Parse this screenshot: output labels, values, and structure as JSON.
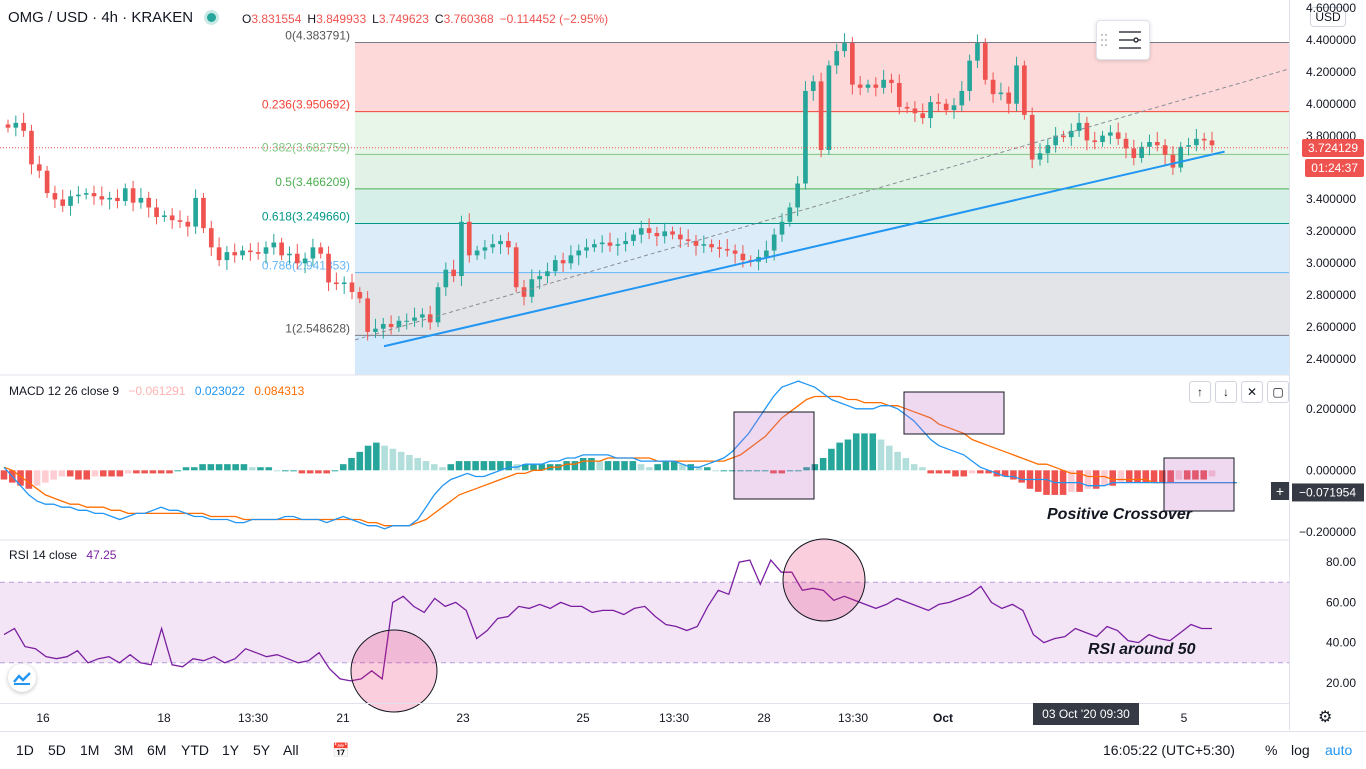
{
  "header": {
    "symbol": "OMG / USD · 4h · KRAKEN",
    "ohlc": [
      {
        "k": "O",
        "v": "3.831554"
      },
      {
        "k": "H",
        "v": "3.849933"
      },
      {
        "k": "L",
        "v": "3.749623"
      },
      {
        "k": "C",
        "v": "3.760368"
      },
      {
        "k": "",
        "v": "−0.114452 (−2.95%)"
      }
    ],
    "currency": "USD"
  },
  "colors": {
    "up": "#26a69a",
    "down": "#ef5350",
    "trend": "#2196f3",
    "macd": "#2196f3",
    "signal": "#ff6d00",
    "rsi": "#7b1fa2"
  },
  "price_axis": {
    "labels": [
      "4.600000",
      "4.400000",
      "4.200000",
      "4.000000",
      "3.800000",
      "3.600000",
      "3.400000",
      "3.200000",
      "3.000000",
      "2.800000",
      "2.600000",
      "2.400000"
    ],
    "current_price": "3.724129",
    "countdown": "01:24:37"
  },
  "macd_axis": {
    "labels": [
      "0.200000",
      "0.000000",
      "−0.200000"
    ],
    "crosshair_value": "−0.071954"
  },
  "rsi_axis": {
    "labels": [
      "80.00",
      "60.00",
      "40.00",
      "20.00"
    ]
  },
  "indicators": {
    "macd": {
      "label": "MACD",
      "params": "12 26 close 9",
      "v1": "−0.061291",
      "v2": "0.023022",
      "v3": "0.084313"
    },
    "rsi": {
      "label": "RSI",
      "params": "14 close",
      "value": "47.25"
    }
  },
  "annotations": {
    "crossover": "Positive Crossover",
    "rsi": "RSI around 50"
  },
  "time_axis": {
    "labels": [
      "16",
      "18",
      "13:30",
      "21",
      "23",
      "25",
      "13:30",
      "28",
      "13:30",
      "Oct",
      "5"
    ],
    "crosshair": "03 Oct '20  09:30"
  },
  "bottom_bar": {
    "ranges": [
      "1D",
      "5D",
      "1M",
      "3M",
      "6M",
      "YTD",
      "1Y",
      "5Y",
      "All"
    ],
    "clock": "16:05:22 (UTC+5:30)",
    "percent": "%",
    "log": "log",
    "auto": "auto"
  },
  "chart_data": [
    {
      "type": "candlestick",
      "title": "OMG / USD · 4h · KRAKEN",
      "ylim": [
        2.3,
        4.65
      ],
      "fibonacci": [
        {
          "level": "0",
          "price": 4.383791,
          "label": "0(4.383791)"
        },
        {
          "level": "0.236",
          "price": 3.950692,
          "label": "0.236(3.950692)"
        },
        {
          "level": "0.382",
          "price": 3.682759,
          "label": "0.382(3.682759)"
        },
        {
          "level": "0.5",
          "price": 3.466209,
          "label": "0.5(3.466209)"
        },
        {
          "level": "0.618",
          "price": 3.24966,
          "label": "0.618(3.249660)"
        },
        {
          "level": "0.786",
          "price": 2.941353,
          "label": "0.786(2.941353)"
        },
        {
          "level": "1",
          "price": 2.548628,
          "label": "1(2.548628)"
        }
      ],
      "close": [
        3.85,
        3.88,
        3.83,
        3.62,
        3.58,
        3.44,
        3.4,
        3.36,
        3.42,
        3.43,
        3.44,
        3.42,
        3.4,
        3.41,
        3.39,
        3.47,
        3.38,
        3.41,
        3.35,
        3.29,
        3.3,
        3.27,
        3.26,
        3.23,
        3.41,
        3.22,
        3.1,
        3.02,
        3.07,
        3.05,
        3.08,
        3.07,
        3.06,
        3.1,
        3.13,
        3.05,
        3.06,
        3.0,
        3.03,
        3.1,
        3.06,
        2.88,
        2.87,
        2.88,
        2.82,
        2.78,
        2.57,
        2.59,
        2.62,
        2.6,
        2.64,
        2.64,
        2.66,
        2.68,
        2.63,
        2.85,
        2.96,
        2.92,
        3.26,
        3.05,
        3.08,
        3.1,
        3.12,
        3.14,
        3.1,
        2.85,
        2.79,
        2.9,
        2.92,
        2.95,
        3.02,
        3.0,
        3.05,
        3.08,
        3.1,
        3.12,
        3.13,
        3.11,
        3.12,
        3.14,
        3.18,
        3.22,
        3.19,
        3.17,
        3.2,
        3.18,
        3.15,
        3.14,
        3.11,
        3.12,
        3.1,
        3.09,
        3.08,
        3.06,
        3.02,
        3.01,
        3.04,
        3.08,
        3.18,
        3.26,
        3.35,
        3.5,
        4.08,
        4.14,
        3.71,
        4.24,
        4.33,
        4.38,
        4.12,
        4.1,
        4.12,
        4.1,
        4.15,
        4.13,
        3.98,
        3.97,
        3.94,
        3.91,
        4.01,
        4.0,
        3.96,
        3.99,
        4.08,
        4.27,
        4.38,
        4.15,
        4.06,
        4.07,
        4.0,
        4.24,
        3.93,
        3.65,
        3.69,
        3.74,
        3.8,
        3.79,
        3.83,
        3.88,
        3.77,
        3.76,
        3.8,
        3.82,
        3.78,
        3.72,
        3.66,
        3.73,
        3.76,
        3.74,
        3.68,
        3.6,
        3.73,
        3.74,
        3.78,
        3.77,
        3.74
      ],
      "trendline": [
        [
          0.031,
          2.48
        ],
        [
          0.93,
          3.7
        ]
      ]
    },
    {
      "type": "bar",
      "title": "MACD 12 26 close 9",
      "ylim": [
        -0.22,
        0.3
      ],
      "histogram": [
        -0.03,
        -0.04,
        -0.05,
        -0.06,
        -0.05,
        -0.04,
        -0.03,
        -0.02,
        -0.02,
        -0.03,
        -0.03,
        -0.02,
        -0.02,
        -0.02,
        -0.02,
        -0.01,
        -0.01,
        -0.01,
        -0.01,
        -0.01,
        -0.01,
        0.0,
        0.01,
        0.01,
        0.02,
        0.02,
        0.02,
        0.02,
        0.02,
        0.02,
        0.01,
        0.01,
        0.01,
        0.0,
        0.0,
        0.0,
        -0.01,
        -0.01,
        -0.01,
        -0.01,
        0.0,
        0.02,
        0.04,
        0.06,
        0.08,
        0.09,
        0.08,
        0.07,
        0.06,
        0.05,
        0.04,
        0.03,
        0.02,
        0.01,
        0.02,
        0.03,
        0.03,
        0.03,
        0.03,
        0.03,
        0.03,
        0.03,
        0.02,
        0.02,
        0.02,
        0.02,
        0.02,
        0.02,
        0.03,
        0.03,
        0.04,
        0.04,
        0.03,
        0.03,
        0.03,
        0.03,
        0.03,
        0.02,
        0.01,
        0.02,
        0.03,
        0.03,
        0.02,
        0.02,
        0.01,
        0.01,
        0.0,
        0.0,
        0.0,
        0.0,
        0.0,
        0.0,
        0.0,
        -0.01,
        -0.01,
        0.0,
        0.0,
        0.01,
        0.02,
        0.04,
        0.07,
        0.09,
        0.1,
        0.12,
        0.12,
        0.12,
        0.1,
        0.08,
        0.06,
        0.04,
        0.02,
        0.01,
        -0.01,
        -0.01,
        -0.01,
        -0.02,
        -0.02,
        -0.01,
        -0.01,
        -0.01,
        -0.02,
        -0.02,
        -0.03,
        -0.04,
        -0.06,
        -0.07,
        -0.08,
        -0.08,
        -0.08,
        -0.07,
        -0.07,
        -0.06,
        -0.06,
        -0.05,
        -0.05,
        -0.04,
        -0.04,
        -0.04,
        -0.04,
        -0.04,
        -0.04,
        -0.04,
        -0.03,
        -0.03,
        -0.03,
        -0.03,
        -0.02
      ],
      "macd": [
        0.01,
        -0.02,
        -0.05,
        -0.08,
        -0.1,
        -0.11,
        -0.11,
        -0.12,
        -0.12,
        -0.13,
        -0.13,
        -0.14,
        -0.14,
        -0.15,
        -0.16,
        -0.15,
        -0.14,
        -0.14,
        -0.13,
        -0.12,
        -0.13,
        -0.13,
        -0.14,
        -0.15,
        -0.15,
        -0.16,
        -0.16,
        -0.16,
        -0.17,
        -0.17,
        -0.16,
        -0.16,
        -0.16,
        -0.16,
        -0.15,
        -0.15,
        -0.16,
        -0.16,
        -0.16,
        -0.17,
        -0.16,
        -0.15,
        -0.16,
        -0.17,
        -0.18,
        -0.18,
        -0.19,
        -0.18,
        -0.18,
        -0.18,
        -0.16,
        -0.12,
        -0.08,
        -0.05,
        -0.03,
        -0.02,
        -0.01,
        -0.02,
        -0.02,
        -0.01,
        0.0,
        0.01,
        0.01,
        0.02,
        0.02,
        0.02,
        0.03,
        0.03,
        0.04,
        0.04,
        0.05,
        0.05,
        0.05,
        0.05,
        0.04,
        0.04,
        0.04,
        0.03,
        0.03,
        0.03,
        0.03,
        0.03,
        0.02,
        0.01,
        0.01,
        0.02,
        0.03,
        0.04,
        0.06,
        0.09,
        0.12,
        0.16,
        0.2,
        0.24,
        0.27,
        0.28,
        0.29,
        0.28,
        0.27,
        0.25,
        0.23,
        0.22,
        0.21,
        0.2,
        0.2,
        0.2,
        0.21,
        0.21,
        0.2,
        0.18,
        0.16,
        0.13,
        0.1,
        0.08,
        0.07,
        0.06,
        0.05,
        0.03,
        0.01,
        0.0,
        -0.01,
        -0.02,
        -0.02,
        -0.03,
        -0.03,
        -0.03,
        -0.03,
        -0.04,
        -0.04,
        -0.04,
        -0.04,
        -0.05,
        -0.05,
        -0.05,
        -0.04,
        -0.04,
        -0.04,
        -0.04,
        -0.04,
        -0.04,
        -0.04,
        -0.04,
        -0.04,
        -0.04,
        -0.04,
        -0.04,
        -0.04,
        -0.04,
        -0.04,
        -0.04
      ],
      "signal": [
        0.01,
        -0.0,
        -0.02,
        -0.04,
        -0.06,
        -0.08,
        -0.09,
        -0.1,
        -0.11,
        -0.11,
        -0.12,
        -0.12,
        -0.12,
        -0.13,
        -0.13,
        -0.14,
        -0.14,
        -0.14,
        -0.14,
        -0.14,
        -0.14,
        -0.14,
        -0.14,
        -0.14,
        -0.14,
        -0.15,
        -0.15,
        -0.15,
        -0.15,
        -0.16,
        -0.16,
        -0.16,
        -0.16,
        -0.16,
        -0.16,
        -0.16,
        -0.16,
        -0.16,
        -0.16,
        -0.16,
        -0.16,
        -0.16,
        -0.16,
        -0.16,
        -0.17,
        -0.17,
        -0.18,
        -0.18,
        -0.18,
        -0.18,
        -0.17,
        -0.16,
        -0.14,
        -0.12,
        -0.1,
        -0.08,
        -0.07,
        -0.06,
        -0.05,
        -0.04,
        -0.03,
        -0.02,
        -0.01,
        -0.01,
        0.0,
        0.0,
        0.01,
        0.01,
        0.02,
        0.02,
        0.03,
        0.03,
        0.03,
        0.04,
        0.04,
        0.04,
        0.04,
        0.04,
        0.04,
        0.03,
        0.03,
        0.03,
        0.03,
        0.03,
        0.03,
        0.03,
        0.03,
        0.03,
        0.04,
        0.05,
        0.07,
        0.09,
        0.11,
        0.14,
        0.17,
        0.19,
        0.21,
        0.23,
        0.24,
        0.24,
        0.24,
        0.24,
        0.23,
        0.23,
        0.22,
        0.22,
        0.22,
        0.21,
        0.21,
        0.2,
        0.19,
        0.18,
        0.17,
        0.15,
        0.14,
        0.13,
        0.12,
        0.1,
        0.09,
        0.08,
        0.07,
        0.06,
        0.05,
        0.04,
        0.03,
        0.02,
        0.02,
        0.01,
        0.0,
        -0.01,
        -0.01,
        -0.02,
        -0.02,
        -0.02,
        -0.03,
        -0.03,
        -0.03,
        -0.03,
        -0.03,
        -0.04,
        -0.04,
        -0.04,
        -0.04,
        -0.04,
        -0.04,
        -0.04,
        -0.04,
        -0.04,
        -0.04,
        -0.04
      ]
    },
    {
      "type": "line",
      "title": "RSI 14 close",
      "ylim": [
        10,
        90
      ],
      "band": [
        30,
        70
      ],
      "values": [
        44,
        47,
        38,
        37,
        33,
        32,
        33,
        36,
        30,
        32,
        33,
        30,
        34,
        30,
        29,
        47,
        29,
        28,
        32,
        31,
        33,
        30,
        32,
        37,
        35,
        33,
        34,
        32,
        30,
        31,
        35,
        27,
        22,
        21,
        22,
        26,
        22,
        60,
        63,
        58,
        55,
        62,
        58,
        60,
        56,
        42,
        46,
        52,
        53,
        58,
        57,
        59,
        57,
        60,
        58,
        58,
        55,
        56,
        56,
        54,
        57,
        58,
        53,
        49,
        48,
        46,
        48,
        58,
        66,
        64,
        80,
        81,
        69,
        81,
        75,
        75,
        66,
        67,
        66,
        61,
        63,
        61,
        59,
        57,
        59,
        62,
        60,
        58,
        56,
        59,
        60,
        62,
        64,
        68,
        60,
        57,
        59,
        56,
        44,
        40,
        42,
        43,
        47,
        45,
        43,
        48,
        46,
        41,
        40,
        44,
        42,
        41,
        45,
        49,
        47,
        47
      ],
      "annotation": "RSI around 50"
    }
  ]
}
